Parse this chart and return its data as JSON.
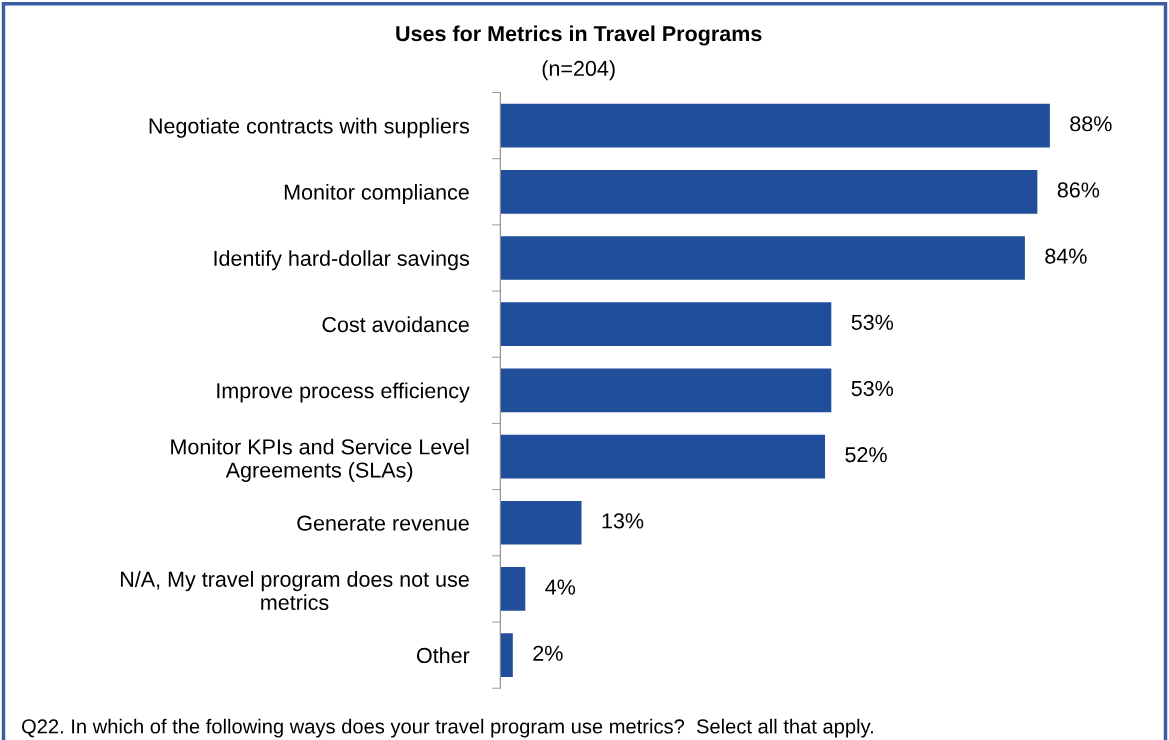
{
  "chart_data": {
    "type": "bar",
    "orientation": "horizontal",
    "title": "Uses for Metrics in Travel Programs",
    "subtitle": "(n=204)",
    "categories": [
      "Negotiate contracts with suppliers",
      "Monitor compliance",
      "Identify hard-dollar savings",
      "Cost avoidance",
      "Improve process efficiency",
      "Monitor KPIs and Service Level\nAgreements (SLAs)",
      "Generate revenue",
      "N/A, My travel program does not use\nmetrics",
      "Other"
    ],
    "values": [
      88,
      86,
      84,
      53,
      53,
      52,
      13,
      4,
      2
    ],
    "value_labels": [
      "88%",
      "86%",
      "84%",
      "53%",
      "53%",
      "52%",
      "13%",
      "4%",
      "2%"
    ],
    "color": "#214e9a",
    "tick_labels": "y",
    "grid": false,
    "annotations": [
      "Q22. In which of the following ways does your travel program use metrics?  Select all that apply."
    ]
  }
}
